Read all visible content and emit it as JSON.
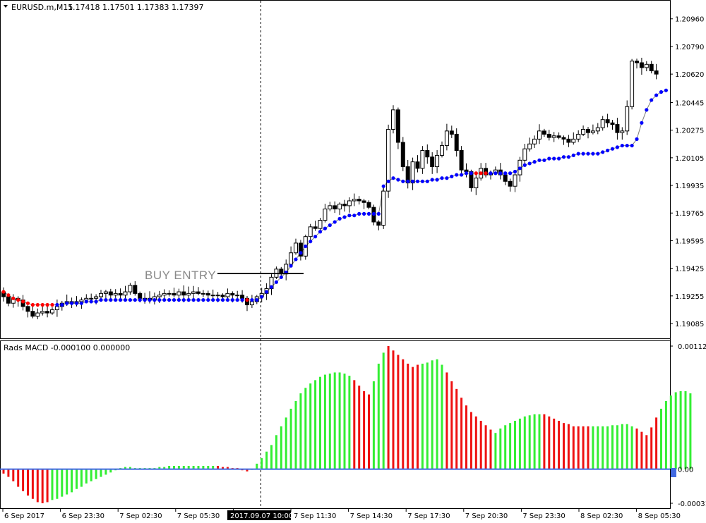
{
  "main_header": {
    "symbol_label": "EURUSD.m,M15",
    "ohlc": "1.17418 1.17501 1.17383 1.17397"
  },
  "sub_header": {
    "indicator_label": "Rads MACD -0.000100 0.000000"
  },
  "annotation": {
    "text": "BUY ENTRY",
    "price": 1.1939
  },
  "colors": {
    "background": "#ffffff",
    "candle": "#000000",
    "trail_up": "#0000ff",
    "trail_down": "#ff0000",
    "macd_up": "#33ee33",
    "macd_down": "#ee1111",
    "zero_line": "#4169e1",
    "grid_separator": "#000000"
  },
  "chart_data": [
    {
      "type": "candlestick",
      "panel": "main",
      "symbol": "EURUSD.m",
      "timeframe": "M15",
      "ylim": [
        1.1902,
        1.2105
      ],
      "y_ticks": [
        "1.20960",
        "1.20790",
        "1.20620",
        "1.20445",
        "1.20275",
        "1.20105",
        "1.19935",
        "1.19765",
        "1.19595",
        "1.19425",
        "1.19255",
        "1.19085"
      ],
      "x_ticks": [
        "6 Sep 2017",
        "6 Sep 23:30",
        "7 Sep 02:30",
        "7 Sep 05:30",
        "2017.09.07 10:00",
        "7 Sep 11:30",
        "7 Sep 14:30",
        "7 Sep 17:30",
        "7 Sep 20:30",
        "7 Sep 23:30",
        "8 Sep 02:30",
        "8 Sep 05:30"
      ],
      "highlighted_x_tick": "2017.09.07 10:00",
      "closes": [
        1.1925,
        1.1921,
        1.1924,
        1.1923,
        1.1919,
        1.1916,
        1.1913,
        1.1915,
        1.1916,
        1.1915,
        1.1917,
        1.1919,
        1.1921,
        1.1922,
        1.1921,
        1.1922,
        1.1923,
        1.1924,
        1.1924,
        1.1925,
        1.1927,
        1.1928,
        1.1926,
        1.1927,
        1.1926,
        1.1928,
        1.1932,
        1.1927,
        1.1924,
        1.1924,
        1.1923,
        1.1925,
        1.1926,
        1.1927,
        1.1927,
        1.1926,
        1.1928,
        1.1926,
        1.1927,
        1.1928,
        1.1927,
        1.1927,
        1.1926,
        1.1926,
        1.1926,
        1.1925,
        1.1927,
        1.1926,
        1.1926,
        1.1924,
        1.192,
        1.1922,
        1.1925,
        1.1927,
        1.193,
        1.1937,
        1.1942,
        1.1939,
        1.1945,
        1.1952,
        1.1958,
        1.195,
        1.1962,
        1.1968,
        1.1967,
        1.1972,
        1.1979,
        1.1981,
        1.1979,
        1.1982,
        1.1981,
        1.1984,
        1.1985,
        1.1984,
        1.1983,
        1.198,
        1.1971,
        1.1969,
        1.199,
        1.2028,
        1.204,
        1.202,
        1.2005,
        1.1995,
        1.2008,
        1.2004,
        1.2015,
        1.2011,
        1.2005,
        1.2012,
        1.2018,
        1.2027,
        1.2025,
        1.2015,
        1.2003,
        1.2002,
        1.1992,
        1.1998,
        1.2004,
        1.2,
        1.2001,
        1.2003,
        1.2,
        1.1996,
        1.1993,
        1.2,
        1.2009,
        1.2016,
        1.2019,
        1.2022,
        1.2027,
        1.2025,
        1.2023,
        1.2024,
        1.2023,
        1.2022,
        1.202,
        1.2022,
        1.2025,
        1.2028,
        1.2026,
        1.2027,
        1.2029,
        1.2034,
        1.2032,
        1.2031,
        1.2026,
        1.2027,
        1.2042,
        1.207,
        1.2069,
        1.2066,
        1.2068,
        1.2064,
        1.2062
      ],
      "series": [
        {
          "name": "trail",
          "values": [
            1.1928,
            1.1926,
            1.1924,
            1.1923,
            1.1922,
            1.1921,
            1.192,
            1.192,
            1.192,
            1.192,
            1.192,
            1.192,
            1.192,
            1.1921,
            1.1921,
            1.1921,
            1.1921,
            1.1922,
            1.1922,
            1.1922,
            1.1923,
            1.1923,
            1.1923,
            1.1923,
            1.1923,
            1.1923,
            1.1923,
            1.1923,
            1.1923,
            1.1923,
            1.1923,
            1.1923,
            1.1923,
            1.1923,
            1.1923,
            1.1923,
            1.1923,
            1.1923,
            1.1923,
            1.1923,
            1.1923,
            1.1923,
            1.1923,
            1.1923,
            1.1923,
            1.1923,
            1.1923,
            1.1923,
            1.1923,
            1.1923,
            1.1923,
            1.1923,
            1.1923,
            1.1925,
            1.1928,
            1.1931,
            1.1934,
            1.1937,
            1.194,
            1.1944,
            1.1948,
            1.1952,
            1.1956,
            1.1959,
            1.1962,
            1.1965,
            1.1967,
            1.1969,
            1.1971,
            1.1973,
            1.1974,
            1.1975,
            1.1975,
            1.1976,
            1.1976,
            1.1976,
            1.1976,
            1.1976,
            1.1993,
            1.1996,
            1.1998,
            1.1997,
            1.1996,
            1.1996,
            1.1996,
            1.1996,
            1.1996,
            1.1996,
            1.1997,
            1.1997,
            1.1998,
            1.1998,
            1.1999,
            1.2,
            1.2,
            1.2001,
            1.2001,
            1.2001,
            1.2001,
            1.2001,
            1.2001,
            1.2001,
            1.2001,
            1.2001,
            1.2001,
            1.2002,
            1.2004,
            1.2006,
            1.2007,
            1.2008,
            1.2009,
            1.2009,
            1.201,
            1.201,
            1.201,
            1.2011,
            1.2011,
            1.2012,
            1.2013,
            1.2013,
            1.2013,
            1.2013,
            1.2013,
            1.2014,
            1.2015,
            1.2016,
            1.2017,
            1.2018,
            1.2018,
            1.2018,
            1.2022,
            1.2032,
            1.204,
            1.2046,
            1.2049,
            1.2051,
            1.2052
          ]
        },
        {
          "name": "trail_state",
          "values": "DDDDDDDDDDDUUUUUUUUUUUUUUUUUUUUUUUUUUUUUUUUUUUUUUUDUUUUUUUUUUUUUUUUUUUUUUUUUUUUUUUUUUUUUUUUUUUUUUDDDUUUUUUUUUUUUUUUUUUUUUUUUUUUUUUUUUUUUU"
        }
      ]
    },
    {
      "type": "bar",
      "panel": "indicator",
      "name": "Rads MACD",
      "ylim": [
        -0.00031,
        0.00112
      ],
      "y_ticks": [
        "0.00112",
        "0.00",
        "-0.00031"
      ],
      "current_value_tag": "0.00",
      "series": [
        {
          "name": "histogram",
          "values": [
            -4e-05,
            -7e-05,
            -0.00011,
            -0.00016,
            -0.0002,
            -0.00024,
            -0.00027,
            -0.0003,
            -0.00031,
            -0.0003,
            -0.00028,
            -0.00027,
            -0.00025,
            -0.00023,
            -0.00021,
            -0.00018,
            -0.00016,
            -0.00013,
            -0.00011,
            -9e-05,
            -7e-05,
            -5e-05,
            -3e-05,
            -1e-05,
            1e-05,
            2e-05,
            2e-05,
            1e-05,
            1e-05,
            1e-05,
            1e-05,
            1e-05,
            2e-05,
            2e-05,
            3e-05,
            3e-05,
            3e-05,
            3e-05,
            3e-05,
            3e-05,
            3e-05,
            3e-05,
            3e-05,
            3e-05,
            3e-05,
            2e-05,
            2e-05,
            1e-05,
            1e-05,
            -1e-05,
            -2e-05,
            0.0,
            5e-05,
            0.0001,
            0.00016,
            0.00022,
            0.00031,
            0.00039,
            0.00047,
            0.00055,
            0.00062,
            0.00069,
            0.00074,
            0.00078,
            0.00081,
            0.00084,
            0.00086,
            0.00087,
            0.00088,
            0.00088,
            0.00087,
            0.00085,
            0.00081,
            0.00076,
            0.00071,
            0.00068,
            0.0008,
            0.00096,
            0.00106,
            0.00112,
            0.00108,
            0.00104,
            0.001,
            0.00096,
            0.00093,
            0.00095,
            0.00096,
            0.00097,
            0.00099,
            0.001,
            0.00095,
            0.00088,
            0.0008,
            0.00073,
            0.00065,
            0.00058,
            0.00052,
            0.00048,
            0.00044,
            0.0004,
            0.00036,
            0.00033,
            0.00037,
            0.0004,
            0.00042,
            0.00044,
            0.00046,
            0.00048,
            0.00049,
            0.0005,
            0.0005,
            0.0005,
            0.00048,
            0.00046,
            0.00044,
            0.00042,
            0.00041,
            0.00039,
            0.00039,
            0.00039,
            0.00039,
            0.00039,
            0.00039,
            0.00039,
            0.00039,
            0.0004,
            0.0004,
            0.00041,
            0.00041,
            0.00039,
            0.00037,
            0.00034,
            0.00031,
            0.00038,
            0.00047,
            0.00055,
            0.00062,
            0.00067,
            0.0007,
            0.00071,
            0.00071,
            0.00069
          ]
        },
        {
          "name": "histogram_state",
          "values": "DDDDDDDDDDUUUUUUUUUUUUUUUUUUUUUUUUUUUUUUUUUUDDDDDDDUUUUUUUUUUUUUUUUUUUUUDDDDUUUDDDDDDDUUUUUDDDDDDDDDDUUUUUUUUUUDDDDDDDDDDUUUUUUUUUDDDDDUUUUUUUUUD"
        }
      ]
    }
  ]
}
